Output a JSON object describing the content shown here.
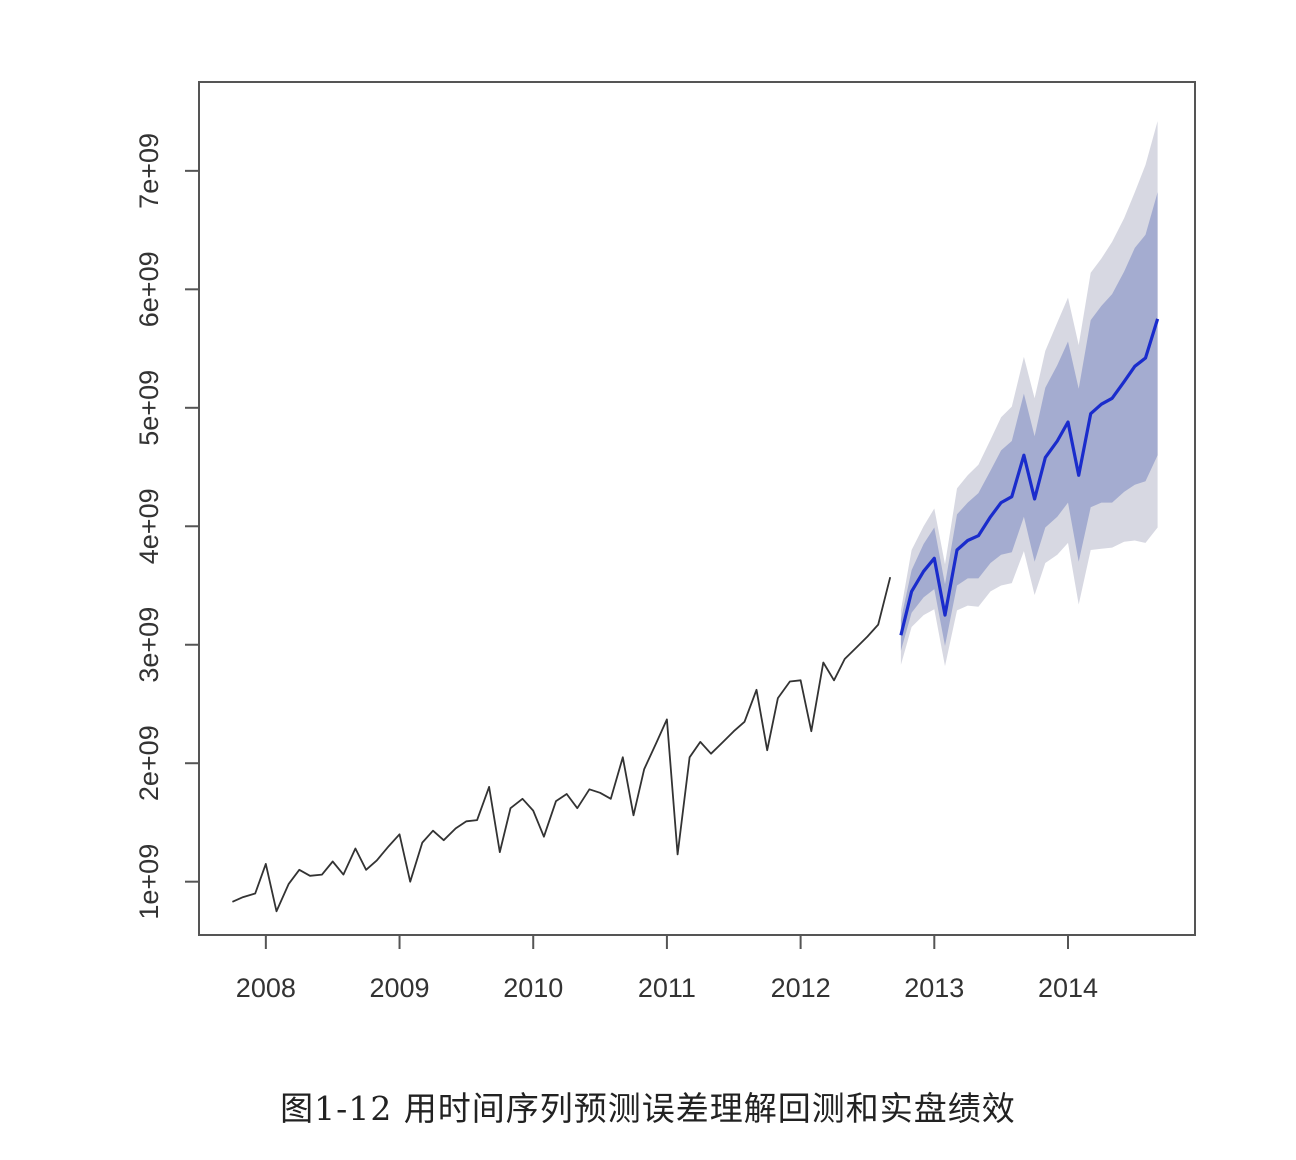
{
  "chart_data": {
    "type": "line",
    "title": "",
    "xlabel": "",
    "ylabel": "",
    "xlim": [
      2007.5,
      2014.95
    ],
    "ylim": [
      550000000,
      7750000000
    ],
    "x_ticks": [
      {
        "value": 2008,
        "label": "2008"
      },
      {
        "value": 2009,
        "label": "2009"
      },
      {
        "value": 2010,
        "label": "2010"
      },
      {
        "value": 2011,
        "label": "2011"
      },
      {
        "value": 2012,
        "label": "2012"
      },
      {
        "value": 2013,
        "label": "2013"
      },
      {
        "value": 2014,
        "label": "2014"
      }
    ],
    "y_ticks": [
      {
        "value": 1000000000,
        "label": "1e+09"
      },
      {
        "value": 2000000000,
        "label": "2e+09"
      },
      {
        "value": 3000000000,
        "label": "3e+09"
      },
      {
        "value": 4000000000,
        "label": "4e+09"
      },
      {
        "value": 5000000000,
        "label": "5e+09"
      },
      {
        "value": 6000000000,
        "label": "6e+09"
      },
      {
        "value": 7000000000,
        "label": "7e+09"
      }
    ],
    "grid": false,
    "legend": "none",
    "colors": {
      "history": "#333333",
      "forecast": "#1a2ccc",
      "band80": "#a4acd0",
      "band95": "#d7d8e2"
    },
    "series": [
      {
        "role": "history",
        "x": [
          2007.75,
          2007.83,
          2007.92,
          2008.0,
          2008.08,
          2008.17,
          2008.25,
          2008.33,
          2008.42,
          2008.5,
          2008.58,
          2008.67,
          2008.75,
          2008.83,
          2008.92,
          2009.0,
          2009.08,
          2009.17,
          2009.25,
          2009.33,
          2009.42,
          2009.5,
          2009.58,
          2009.67,
          2009.75,
          2009.83,
          2009.92,
          2010.0,
          2010.08,
          2010.17,
          2010.25,
          2010.33,
          2010.42,
          2010.5,
          2010.58,
          2010.67,
          2010.75,
          2010.83,
          2010.92,
          2011.0,
          2011.08,
          2011.17,
          2011.25,
          2011.33,
          2011.42,
          2011.5,
          2011.58,
          2011.67,
          2011.75,
          2011.83,
          2011.92,
          2012.0,
          2012.08,
          2012.17,
          2012.25,
          2012.33,
          2012.42,
          2012.5,
          2012.58,
          2012.67
        ],
        "y": [
          830000000,
          870000000,
          900000000,
          1150000000,
          750000000,
          980000000,
          1100000000,
          1050000000,
          1060000000,
          1170000000,
          1060000000,
          1280000000,
          1100000000,
          1180000000,
          1300000000,
          1400000000,
          1000000000,
          1330000000,
          1430000000,
          1350000000,
          1450000000,
          1510000000,
          1520000000,
          1800000000,
          1250000000,
          1620000000,
          1700000000,
          1600000000,
          1380000000,
          1680000000,
          1740000000,
          1620000000,
          1780000000,
          1750000000,
          1700000000,
          2050000000,
          1560000000,
          1950000000,
          2170000000,
          2370000000,
          1230000000,
          2050000000,
          2180000000,
          2080000000,
          2180000000,
          2270000000,
          2350000000,
          2620000000,
          2110000000,
          2550000000,
          2690000000,
          2700000000,
          2270000000,
          2850000000,
          2700000000,
          2880000000,
          2980000000,
          3070000000,
          3170000000,
          3570000000
        ]
      },
      {
        "role": "forecast",
        "x": [
          2012.75,
          2012.83,
          2012.92,
          2013.0,
          2013.08,
          2013.17,
          2013.25,
          2013.33,
          2013.42,
          2013.5,
          2013.58,
          2013.67,
          2013.75,
          2013.83,
          2013.92,
          2014.0,
          2014.08,
          2014.17,
          2014.25,
          2014.33,
          2014.42,
          2014.5,
          2014.58,
          2014.67
        ],
        "y": [
          3080000000,
          3450000000,
          3620000000,
          3730000000,
          3250000000,
          3800000000,
          3880000000,
          3920000000,
          4080000000,
          4200000000,
          4250000000,
          4600000000,
          4230000000,
          4580000000,
          4720000000,
          4880000000,
          4430000000,
          4950000000,
          5030000000,
          5080000000,
          5220000000,
          5350000000,
          5420000000,
          5750000000
        ]
      },
      {
        "role": "interval-80",
        "x": [
          2012.75,
          2012.83,
          2012.92,
          2013.0,
          2013.08,
          2013.17,
          2013.25,
          2013.33,
          2013.42,
          2013.5,
          2013.58,
          2013.67,
          2013.75,
          2013.83,
          2013.92,
          2014.0,
          2014.08,
          2014.17,
          2014.25,
          2014.33,
          2014.42,
          2014.5,
          2014.58,
          2014.67
        ],
        "lower": [
          2950000000,
          3270000000,
          3400000000,
          3470000000,
          2990000000,
          3500000000,
          3560000000,
          3560000000,
          3690000000,
          3760000000,
          3780000000,
          4080000000,
          3700000000,
          3990000000,
          4080000000,
          4200000000,
          3700000000,
          4160000000,
          4200000000,
          4200000000,
          4290000000,
          4350000000,
          4380000000,
          4600000000
        ],
        "upper": [
          3210000000,
          3630000000,
          3850000000,
          3990000000,
          3510000000,
          4100000000,
          4200000000,
          4280000000,
          4470000000,
          4640000000,
          4720000000,
          5120000000,
          4760000000,
          5170000000,
          5360000000,
          5560000000,
          5160000000,
          5740000000,
          5860000000,
          5960000000,
          6150000000,
          6350000000,
          6460000000,
          6820000000
        ]
      },
      {
        "role": "interval-95",
        "x": [
          2012.75,
          2012.83,
          2012.92,
          2013.0,
          2013.08,
          2013.17,
          2013.25,
          2013.33,
          2013.42,
          2013.5,
          2013.58,
          2013.67,
          2013.75,
          2013.83,
          2013.92,
          2014.0,
          2014.08,
          2014.17,
          2014.25,
          2014.33,
          2014.42,
          2014.5,
          2014.58,
          2014.67
        ],
        "lower": [
          2830000000,
          3150000000,
          3250000000,
          3300000000,
          2820000000,
          3290000000,
          3330000000,
          3320000000,
          3450000000,
          3500000000,
          3520000000,
          3790000000,
          3420000000,
          3690000000,
          3760000000,
          3860000000,
          3340000000,
          3800000000,
          3810000000,
          3820000000,
          3870000000,
          3880000000,
          3860000000,
          3990000000
        ],
        "upper": [
          3290000000,
          3800000000,
          4000000000,
          4150000000,
          3680000000,
          4320000000,
          4430000000,
          4520000000,
          4730000000,
          4920000000,
          5010000000,
          5430000000,
          5080000000,
          5480000000,
          5720000000,
          5930000000,
          5530000000,
          6140000000,
          6260000000,
          6400000000,
          6600000000,
          6820000000,
          7050000000,
          7420000000
        ]
      }
    ]
  },
  "caption": "图1-12 用时间序列预测误差理解回测和实盘绩效"
}
